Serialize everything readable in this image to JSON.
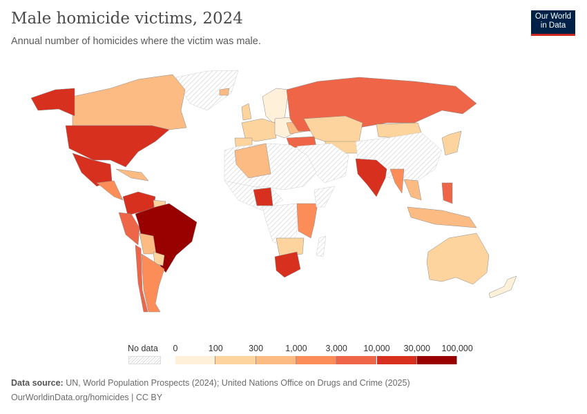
{
  "header": {
    "title": "Male homicide victims, 2024",
    "subtitle": "Annual number of homicides where the victim was male.",
    "logo": "Our World in Data"
  },
  "legend": {
    "no_data_label": "No data",
    "ticks": [
      "0",
      "100",
      "300",
      "1,000",
      "3,000",
      "10,000",
      "30,000",
      "100,000"
    ],
    "colors": [
      "#fef0d9",
      "#fdd49e",
      "#fdbb84",
      "#fc8d59",
      "#ef6548",
      "#d7301f",
      "#990000"
    ],
    "no_data_color": "#e0e0e0"
  },
  "footer": {
    "source_label": "Data source:",
    "source_text": "UN, World Population Prospects (2024); United Nations Office on Drugs and Crime (2025)",
    "url_line": "OurWorldinData.org/homicides | CC BY"
  }
}
